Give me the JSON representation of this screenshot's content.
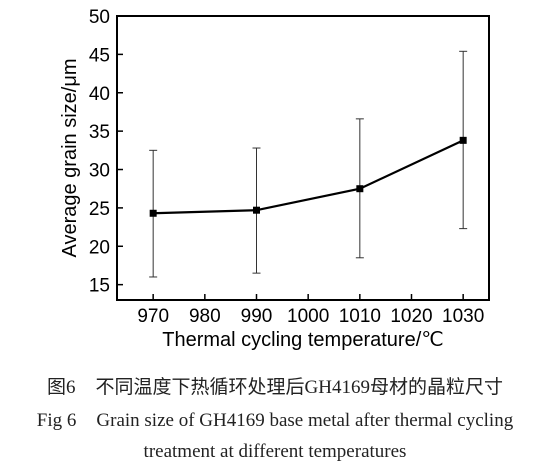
{
  "chart_data": {
    "type": "line",
    "xlabel": "Thermal cycling temperature/℃",
    "ylabel": "Average grain size/μm",
    "x_ticks": [
      "970",
      "980",
      "990",
      "1000",
      "1010",
      "1020",
      "1030"
    ],
    "y_ticks": [
      "15",
      "20",
      "25",
      "30",
      "35",
      "40",
      "45",
      "50"
    ],
    "xlim": [
      963,
      1035
    ],
    "ylim": [
      13,
      50
    ],
    "grid": false,
    "series": [
      {
        "x": [
          970,
          990,
          1010,
          1030
        ],
        "y": [
          24.3,
          24.7,
          27.5,
          33.8
        ],
        "error_low": [
          16.0,
          16.5,
          18.5,
          22.3
        ],
        "error_high": [
          32.5,
          32.8,
          36.6,
          45.4
        ]
      }
    ]
  },
  "caption": {
    "cn_label": "图6",
    "cn_text": "不同温度下热循环处理后GH4169母材的晶粒尺寸",
    "en_label": "Fig 6",
    "en_line1": "Grain size of GH4169 base metal after thermal cycling",
    "en_line2": "treatment at different temperatures"
  }
}
